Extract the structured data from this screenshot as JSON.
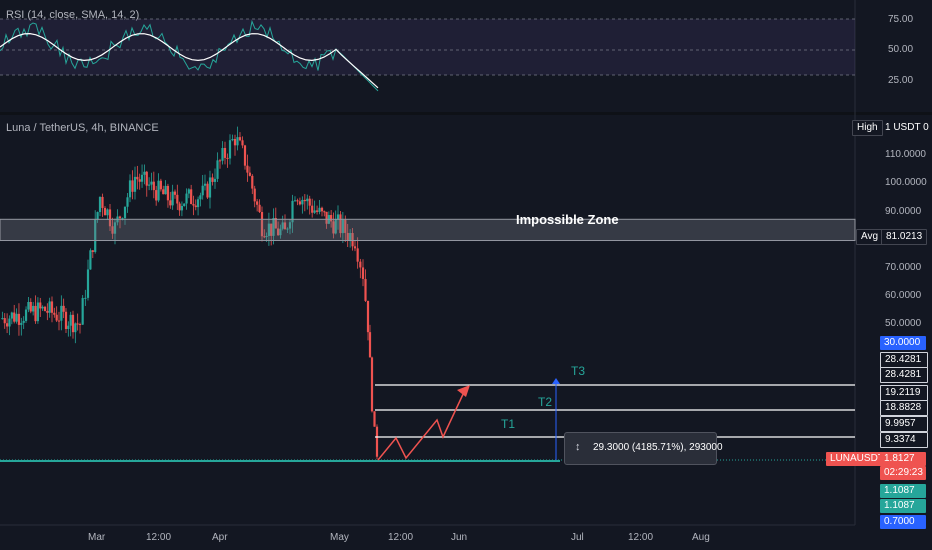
{
  "rsi": {
    "title": "RSI (14, close, SMA, 14, 2)",
    "ticks": [
      "75.00",
      "50.00",
      "25.00"
    ]
  },
  "main": {
    "title": "Luna / TetherUS, 4h, BINANCE",
    "price_ticks": [
      "110.0000",
      "100.0000",
      "90.0000",
      "70.0000",
      "60.0000",
      "50.0000"
    ],
    "zone_label": "Impossible Zone",
    "high_label": "High",
    "high_value": "1 USDT 0",
    "avg_label": "Avg",
    "avg_value": "81.0213",
    "price_tags": [
      {
        "text": "30.0000",
        "color": "#2962ff"
      },
      {
        "text": "28.4281",
        "color": "#131722"
      },
      {
        "text": "28.4281",
        "color": "#131722"
      },
      {
        "text": "19.2119",
        "color": "#131722"
      },
      {
        "text": "18.8828",
        "color": "#131722"
      },
      {
        "text": "9.9957",
        "color": "#131722"
      },
      {
        "text": "9.3374",
        "color": "#131722"
      }
    ],
    "symbol_tag": "LUNAUSDT",
    "last_price": "1.8127",
    "countdown": "02:29:23",
    "low_tags": [
      "1.1087",
      "1.1087"
    ],
    "bottom_tag": "0.7000",
    "targets": [
      "T1",
      "T2",
      "T3"
    ],
    "measure_text": "29.3000 (4185.71%), 293000",
    "time_labels": [
      "Mar",
      "12:00",
      "Apr",
      "May",
      "12:00",
      "Jun",
      "Jul",
      "12:00",
      "Aug"
    ]
  },
  "colors": {
    "background": "#131722",
    "up": "#26a69a",
    "down": "#ef5350",
    "rsi_line": "#ffffff",
    "target_arrow": "#ef5350",
    "measure": "#2962ff",
    "zone": "#787b86"
  },
  "chart_data": {
    "type": "candlestick",
    "title": "Luna / TetherUS, 4h, BINANCE",
    "y_axis_range_approx": [
      0.7,
      120
    ],
    "resistance_zone": {
      "label": "Impossible Zone",
      "avg": 81.0213
    },
    "target_levels": [
      {
        "name": "T1",
        "values": [
          9.3374,
          9.9957
        ]
      },
      {
        "name": "T2",
        "values": [
          18.8828,
          19.2119
        ]
      },
      {
        "name": "T3",
        "values": [
          28.4281,
          28.4281
        ]
      }
    ],
    "current_price": 1.8127,
    "low": 1.1087,
    "measurement": "29.3000 (4185.71%), 293000",
    "price_path_approx": [
      {
        "t": "Feb 12",
        "price": 52
      },
      {
        "t": "Feb 20",
        "price": 55
      },
      {
        "t": "Feb 27",
        "price": 50
      },
      {
        "t": "Mar 1",
        "price": 68
      },
      {
        "t": "Mar 3",
        "price": 95
      },
      {
        "t": "Mar 8",
        "price": 84
      },
      {
        "t": "Mar 12",
        "price": 102
      },
      {
        "t": "Mar 20",
        "price": 93
      },
      {
        "t": "Mar 27",
        "price": 96
      },
      {
        "t": "Apr 1",
        "price": 104
      },
      {
        "t": "Apr 5",
        "price": 116
      },
      {
        "t": "Apr 8",
        "price": 108
      },
      {
        "t": "Apr 12",
        "price": 85
      },
      {
        "t": "Apr 18",
        "price": 82
      },
      {
        "t": "Apr 20",
        "price": 97
      },
      {
        "t": "Apr 28",
        "price": 88
      },
      {
        "t": "May 2",
        "price": 85
      },
      {
        "t": "May 5",
        "price": 80
      },
      {
        "t": "May 7",
        "price": 68
      },
      {
        "t": "May 9",
        "price": 50
      },
      {
        "t": "May 10",
        "price": 20
      },
      {
        "t": "May 11",
        "price": 3
      }
    ],
    "rsi_ticks": [
      75,
      50,
      25
    ]
  }
}
